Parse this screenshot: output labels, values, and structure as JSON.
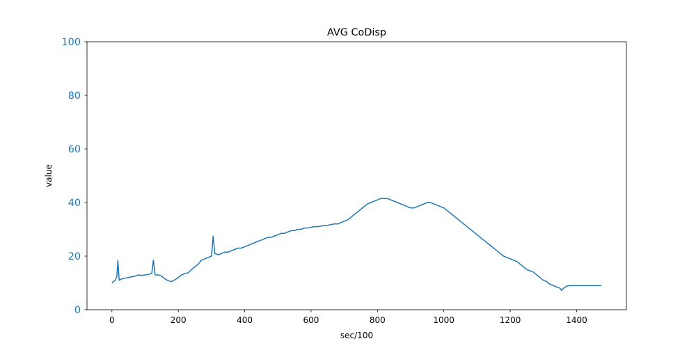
{
  "chart_data": {
    "type": "line",
    "title": "AVG CoDisp",
    "xlabel": "sec/100",
    "ylabel": "value",
    "xlim": [
      -75,
      1550
    ],
    "ylim": [
      0,
      100
    ],
    "xticks": [
      0,
      200,
      400,
      600,
      800,
      1000,
      1200,
      1400
    ],
    "yticks": [
      0,
      20,
      40,
      60,
      80,
      100
    ],
    "grid": false,
    "colors": {
      "line": "#1f77b4",
      "ytick_labels": "#1f77b4",
      "axes": "#000000"
    },
    "series": [
      {
        "points": [
          [
            0,
            10
          ],
          [
            5,
            10.5
          ],
          [
            10,
            11
          ],
          [
            15,
            12.5
          ],
          [
            18,
            18.3
          ],
          [
            22,
            11
          ],
          [
            30,
            11.5
          ],
          [
            40,
            11.8
          ],
          [
            50,
            12
          ],
          [
            60,
            12.3
          ],
          [
            70,
            12.5
          ],
          [
            80,
            13
          ],
          [
            90,
            12.8
          ],
          [
            100,
            13
          ],
          [
            110,
            13.2
          ],
          [
            120,
            13.5
          ],
          [
            125,
            18.5
          ],
          [
            130,
            13
          ],
          [
            140,
            13
          ],
          [
            150,
            12.5
          ],
          [
            160,
            11.5
          ],
          [
            170,
            10.8
          ],
          [
            180,
            10.5
          ],
          [
            190,
            11.2
          ],
          [
            200,
            12
          ],
          [
            210,
            13
          ],
          [
            220,
            13.5
          ],
          [
            230,
            13.8
          ],
          [
            240,
            15
          ],
          [
            250,
            16
          ],
          [
            260,
            17
          ],
          [
            270,
            18.5
          ],
          [
            280,
            19
          ],
          [
            290,
            19.5
          ],
          [
            300,
            20
          ],
          [
            305,
            27.5
          ],
          [
            310,
            21
          ],
          [
            320,
            20.5
          ],
          [
            330,
            21
          ],
          [
            340,
            21.5
          ],
          [
            350,
            21.5
          ],
          [
            360,
            22
          ],
          [
            370,
            22.5
          ],
          [
            380,
            23
          ],
          [
            390,
            23
          ],
          [
            400,
            23.5
          ],
          [
            410,
            24
          ],
          [
            420,
            24.5
          ],
          [
            430,
            25
          ],
          [
            440,
            25.5
          ],
          [
            450,
            26
          ],
          [
            460,
            26.5
          ],
          [
            470,
            27
          ],
          [
            480,
            27
          ],
          [
            490,
            27.5
          ],
          [
            500,
            28
          ],
          [
            510,
            28.5
          ],
          [
            520,
            28.5
          ],
          [
            530,
            29
          ],
          [
            540,
            29.5
          ],
          [
            550,
            29.5
          ],
          [
            560,
            30
          ],
          [
            570,
            30
          ],
          [
            580,
            30.5
          ],
          [
            590,
            30.5
          ],
          [
            600,
            30.8
          ],
          [
            610,
            31
          ],
          [
            620,
            31
          ],
          [
            630,
            31.2
          ],
          [
            640,
            31.5
          ],
          [
            650,
            31.5
          ],
          [
            660,
            31.8
          ],
          [
            670,
            32
          ],
          [
            680,
            32
          ],
          [
            690,
            32.5
          ],
          [
            700,
            33
          ],
          [
            710,
            33.5
          ],
          [
            720,
            34.5
          ],
          [
            730,
            35.5
          ],
          [
            740,
            36.5
          ],
          [
            750,
            37.5
          ],
          [
            760,
            38.5
          ],
          [
            770,
            39.5
          ],
          [
            780,
            40
          ],
          [
            790,
            40.5
          ],
          [
            800,
            41
          ],
          [
            810,
            41.5
          ],
          [
            820,
            41.5
          ],
          [
            830,
            41.5
          ],
          [
            840,
            41
          ],
          [
            850,
            40.5
          ],
          [
            860,
            40
          ],
          [
            870,
            39.5
          ],
          [
            880,
            39
          ],
          [
            890,
            38.5
          ],
          [
            900,
            38
          ],
          [
            910,
            38
          ],
          [
            920,
            38.5
          ],
          [
            930,
            39
          ],
          [
            940,
            39.5
          ],
          [
            950,
            40
          ],
          [
            960,
            40
          ],
          [
            970,
            39.5
          ],
          [
            980,
            39
          ],
          [
            990,
            38.5
          ],
          [
            1000,
            38
          ],
          [
            1010,
            37
          ],
          [
            1020,
            36
          ],
          [
            1030,
            35
          ],
          [
            1040,
            34
          ],
          [
            1050,
            33
          ],
          [
            1060,
            32
          ],
          [
            1070,
            31
          ],
          [
            1080,
            30
          ],
          [
            1090,
            29
          ],
          [
            1100,
            28
          ],
          [
            1110,
            27
          ],
          [
            1120,
            26
          ],
          [
            1130,
            25
          ],
          [
            1140,
            24
          ],
          [
            1150,
            23
          ],
          [
            1160,
            22
          ],
          [
            1170,
            21
          ],
          [
            1180,
            20
          ],
          [
            1190,
            19.5
          ],
          [
            1200,
            19
          ],
          [
            1210,
            18.5
          ],
          [
            1220,
            18
          ],
          [
            1230,
            17
          ],
          [
            1240,
            16
          ],
          [
            1250,
            15
          ],
          [
            1260,
            14.5
          ],
          [
            1270,
            14
          ],
          [
            1280,
            13
          ],
          [
            1290,
            12
          ],
          [
            1300,
            11
          ],
          [
            1310,
            10.5
          ],
          [
            1320,
            9.5
          ],
          [
            1330,
            9
          ],
          [
            1340,
            8.5
          ],
          [
            1350,
            8
          ],
          [
            1355,
            7.2
          ],
          [
            1360,
            8
          ],
          [
            1370,
            8.8
          ],
          [
            1380,
            9
          ],
          [
            1390,
            9
          ],
          [
            1400,
            9
          ],
          [
            1410,
            9
          ],
          [
            1420,
            9
          ],
          [
            1430,
            9
          ],
          [
            1440,
            9
          ],
          [
            1450,
            9
          ],
          [
            1460,
            9
          ],
          [
            1470,
            9
          ],
          [
            1475,
            9
          ]
        ]
      }
    ]
  }
}
